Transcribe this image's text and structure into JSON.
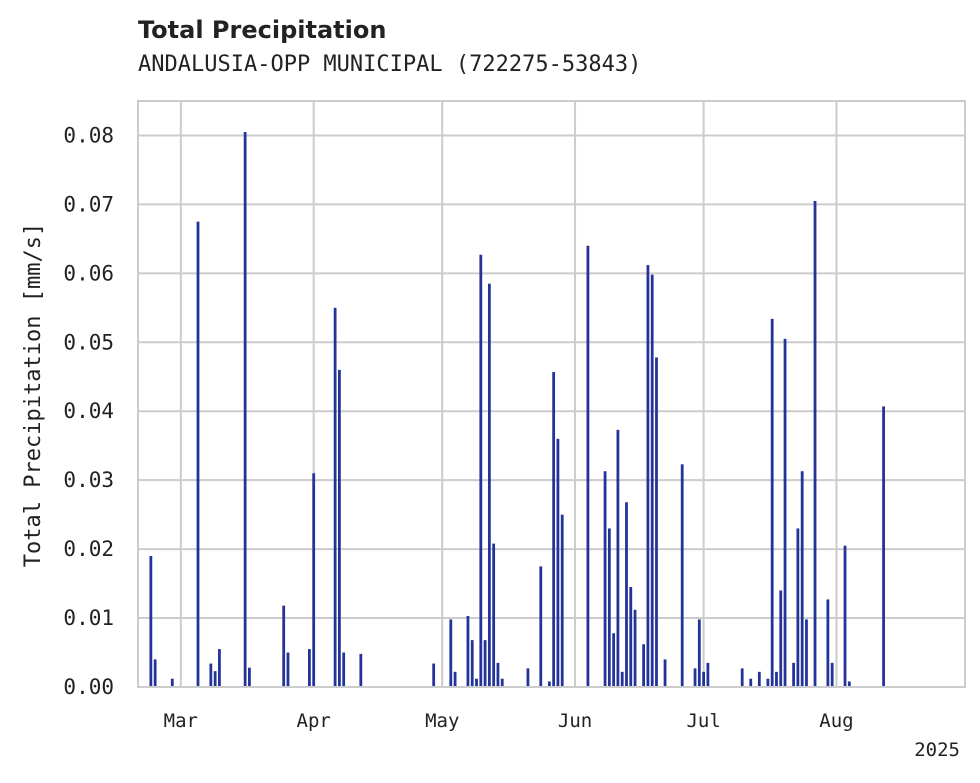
{
  "chart_data": {
    "type": "bar",
    "title": "Total Precipitation",
    "subtitle": "ANDALUSIA-OPP MUNICIPAL (722275-53843)",
    "ylabel": "Total Precipitation [mm/s]",
    "xlabel": "",
    "ylim": [
      0,
      0.085
    ],
    "xlim": [
      "2025-02-19",
      "2025-08-31"
    ],
    "y_ticks": [
      "0.00",
      "0.01",
      "0.02",
      "0.03",
      "0.04",
      "0.05",
      "0.06",
      "0.07",
      "0.08"
    ],
    "x_ticks": [
      {
        "date": "2025-03-01",
        "label": "Mar"
      },
      {
        "date": "2025-04-01",
        "label": "Apr"
      },
      {
        "date": "2025-05-01",
        "label": "May"
      },
      {
        "date": "2025-06-01",
        "label": "Jun"
      },
      {
        "date": "2025-07-01",
        "label": "Jul"
      },
      {
        "date": "2025-08-01",
        "label": "Aug"
      }
    ],
    "year_label": "2025",
    "grid": true,
    "color": "#23339a",
    "series": [
      {
        "x": [
          "2025-02-22",
          "2025-02-23",
          "2025-02-27",
          "2025-03-05",
          "2025-03-08",
          "2025-03-09",
          "2025-03-10",
          "2025-03-16",
          "2025-03-17",
          "2025-03-25",
          "2025-03-26",
          "2025-03-31",
          "2025-04-01",
          "2025-04-06",
          "2025-04-07",
          "2025-04-08",
          "2025-04-12",
          "2025-04-29",
          "2025-05-03",
          "2025-05-04",
          "2025-05-07",
          "2025-05-08",
          "2025-05-09",
          "2025-05-10",
          "2025-05-11",
          "2025-05-12",
          "2025-05-13",
          "2025-05-14",
          "2025-05-15",
          "2025-05-21",
          "2025-05-24",
          "2025-05-26",
          "2025-05-27",
          "2025-05-28",
          "2025-05-29",
          "2025-06-04",
          "2025-06-08",
          "2025-06-09",
          "2025-06-10",
          "2025-06-11",
          "2025-06-12",
          "2025-06-13",
          "2025-06-14",
          "2025-06-15",
          "2025-06-16",
          "2025-06-17",
          "2025-06-18",
          "2025-06-19",
          "2025-06-20",
          "2025-06-21",
          "2025-06-22",
          "2025-06-26",
          "2025-06-29",
          "2025-06-30",
          "2025-07-01",
          "2025-07-02",
          "2025-07-10",
          "2025-07-12",
          "2025-07-14",
          "2025-07-16",
          "2025-07-17",
          "2025-07-18",
          "2025-07-19",
          "2025-07-20",
          "2025-07-22",
          "2025-07-23",
          "2025-07-24",
          "2025-07-25",
          "2025-07-27",
          "2025-07-30",
          "2025-07-31",
          "2025-08-03",
          "2025-08-04",
          "2025-08-12"
        ],
        "values": [
          0.019,
          0.004,
          0.0012,
          0.0675,
          0.0034,
          0.0023,
          0.0055,
          0.0805,
          0.0028,
          0.0118,
          0.005,
          0.0055,
          0.031,
          0.055,
          0.046,
          0.005,
          0.0048,
          0.0034,
          0.0098,
          0.0022,
          0.0103,
          0.0068,
          0.0012,
          0.0627,
          0.0068,
          0.0585,
          0.0208,
          0.0035,
          0.0012,
          0.0027,
          0.0175,
          0.0008,
          0.0457,
          0.036,
          0.025,
          0.064,
          0.0313,
          0.023,
          0.0078,
          0.0373,
          0.0022,
          0.0268,
          0.0145,
          0.0112,
          0.0,
          0.0062,
          0.0612,
          0.0598,
          0.0478,
          0.0,
          0.004,
          0.0323,
          0.0027,
          0.0098,
          0.0022,
          0.0035,
          0.0027,
          0.0012,
          0.0022,
          0.0012,
          0.0534,
          0.0022,
          0.014,
          0.0505,
          0.0035,
          0.023,
          0.0313,
          0.0098,
          0.0705,
          0.0127,
          0.0035,
          0.0205,
          0.0008,
          0.0407
        ]
      }
    ]
  }
}
